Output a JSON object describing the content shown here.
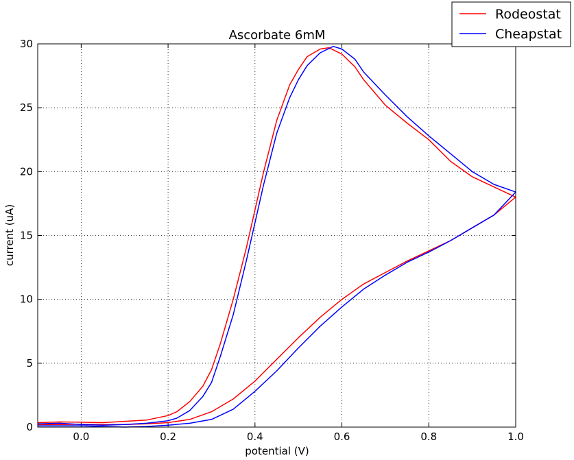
{
  "chart_data": {
    "type": "line",
    "title": "Ascorbate 6mM",
    "xlabel": "potential (V)",
    "ylabel": "current (uA)",
    "xlim": [
      -0.1,
      1.0
    ],
    "ylim": [
      0,
      30
    ],
    "xticks": [
      "0.0",
      "0.2",
      "0.4",
      "0.6",
      "0.8",
      "1.0"
    ],
    "yticks": [
      "0",
      "5",
      "10",
      "15",
      "20",
      "25",
      "30"
    ],
    "grid": true,
    "legend_position": "top-right, outside plot",
    "series": [
      {
        "name": "Rodeostat",
        "color": "#ff0000",
        "x": [
          -0.1,
          -0.05,
          0.0,
          0.05,
          0.1,
          0.15,
          0.2,
          0.22,
          0.25,
          0.28,
          0.3,
          0.32,
          0.35,
          0.38,
          0.4,
          0.42,
          0.45,
          0.48,
          0.5,
          0.52,
          0.55,
          0.57,
          0.6,
          0.63,
          0.65,
          0.7,
          0.75,
          0.8,
          0.85,
          0.9,
          0.95,
          1.0,
          0.95,
          0.9,
          0.85,
          0.8,
          0.75,
          0.7,
          0.65,
          0.6,
          0.55,
          0.5,
          0.45,
          0.4,
          0.35,
          0.3,
          0.25,
          0.2,
          0.15,
          0.1,
          0.05,
          0.0,
          -0.05,
          -0.1
        ],
        "y": [
          0.35,
          0.4,
          0.38,
          0.35,
          0.45,
          0.55,
          0.9,
          1.2,
          2.0,
          3.2,
          4.5,
          6.5,
          10.0,
          14.0,
          17.0,
          20.0,
          24.0,
          26.8,
          28.0,
          29.0,
          29.6,
          29.7,
          29.2,
          28.2,
          27.2,
          25.2,
          23.8,
          22.5,
          20.8,
          19.6,
          18.8,
          18.0,
          16.6,
          15.6,
          14.6,
          13.8,
          13.0,
          12.1,
          11.2,
          10.0,
          8.6,
          7.0,
          5.3,
          3.6,
          2.2,
          1.2,
          0.6,
          0.35,
          0.25,
          0.2,
          0.2,
          0.22,
          0.2,
          0.2
        ]
      },
      {
        "name": "Cheapstat",
        "color": "#0000ff",
        "x": [
          -0.1,
          -0.05,
          0.0,
          0.05,
          0.1,
          0.15,
          0.2,
          0.22,
          0.25,
          0.28,
          0.3,
          0.32,
          0.35,
          0.38,
          0.4,
          0.42,
          0.45,
          0.48,
          0.5,
          0.52,
          0.55,
          0.58,
          0.6,
          0.63,
          0.65,
          0.7,
          0.75,
          0.8,
          0.85,
          0.9,
          0.95,
          1.0,
          0.95,
          0.9,
          0.85,
          0.8,
          0.75,
          0.7,
          0.65,
          0.6,
          0.55,
          0.5,
          0.45,
          0.4,
          0.35,
          0.3,
          0.25,
          0.2,
          0.15,
          0.1,
          0.05,
          0.0,
          -0.05,
          -0.1
        ],
        "y": [
          0.25,
          0.3,
          0.2,
          0.15,
          0.2,
          0.3,
          0.5,
          0.7,
          1.3,
          2.4,
          3.5,
          5.5,
          8.8,
          13.0,
          16.0,
          19.0,
          23.0,
          25.8,
          27.2,
          28.3,
          29.3,
          29.8,
          29.6,
          28.8,
          27.8,
          26.0,
          24.3,
          22.8,
          21.4,
          20.0,
          19.0,
          18.4,
          16.6,
          15.6,
          14.6,
          13.7,
          12.9,
          11.9,
          10.8,
          9.4,
          7.9,
          6.2,
          4.4,
          2.8,
          1.4,
          0.6,
          0.3,
          0.15,
          0.05,
          0.0,
          0.05,
          0.1,
          0.1,
          0.1
        ]
      }
    ]
  }
}
